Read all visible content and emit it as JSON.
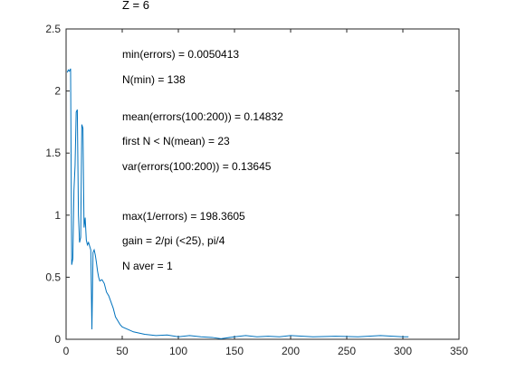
{
  "chart_data": {
    "type": "line",
    "title": "Z = 6",
    "xlabel": "",
    "ylabel": "",
    "xlim": [
      0,
      350
    ],
    "ylim": [
      0,
      2.5
    ],
    "grid": false,
    "x_ticks": [
      "0",
      "50",
      "100",
      "150",
      "200",
      "250",
      "300",
      "350"
    ],
    "y_ticks": [
      "0",
      "0.5",
      "1",
      "1.5",
      "2",
      "2.5"
    ],
    "line_color": "#0072BD",
    "annotations": [
      "min(errors) = 0.0050413",
      "N(min) = 138",
      "mean(errors(100:200)) = 0.14832",
      "first N < N(mean) = 23",
      "var(errors(100:200)) = 0.13645",
      "max(1/errors) = 198.3605",
      "gain = 2/pi (<25), pi/4",
      "N aver = 1"
    ],
    "series": [
      {
        "x": [
          1,
          2,
          3,
          4,
          5,
          6,
          7,
          8,
          9,
          10,
          11,
          12,
          13,
          14,
          15,
          16,
          17,
          18,
          19,
          20,
          21,
          22,
          23,
          24,
          25,
          26,
          27,
          28,
          29,
          30,
          32,
          34,
          36,
          38,
          40,
          42,
          44,
          46,
          48,
          50,
          55,
          60,
          65,
          70,
          80,
          90,
          100,
          110,
          120,
          130,
          138,
          150,
          160,
          170,
          180,
          190,
          200,
          220,
          240,
          260,
          280,
          300,
          305
        ],
        "y": [
          2.15,
          2.17,
          2.16,
          2.18,
          0.6,
          0.65,
          1.2,
          1.4,
          1.83,
          1.85,
          1.0,
          0.78,
          0.82,
          1.73,
          1.7,
          0.9,
          0.98,
          0.8,
          0.76,
          0.78,
          0.75,
          0.72,
          0.08,
          0.7,
          0.72,
          0.68,
          0.62,
          0.55,
          0.5,
          0.47,
          0.48,
          0.45,
          0.38,
          0.35,
          0.3,
          0.25,
          0.18,
          0.15,
          0.12,
          0.1,
          0.08,
          0.06,
          0.05,
          0.04,
          0.03,
          0.035,
          0.02,
          0.03,
          0.02,
          0.015,
          0.005,
          0.02,
          0.03,
          0.02,
          0.025,
          0.02,
          0.03,
          0.02,
          0.025,
          0.02,
          0.03,
          0.02,
          0.02
        ]
      }
    ]
  }
}
